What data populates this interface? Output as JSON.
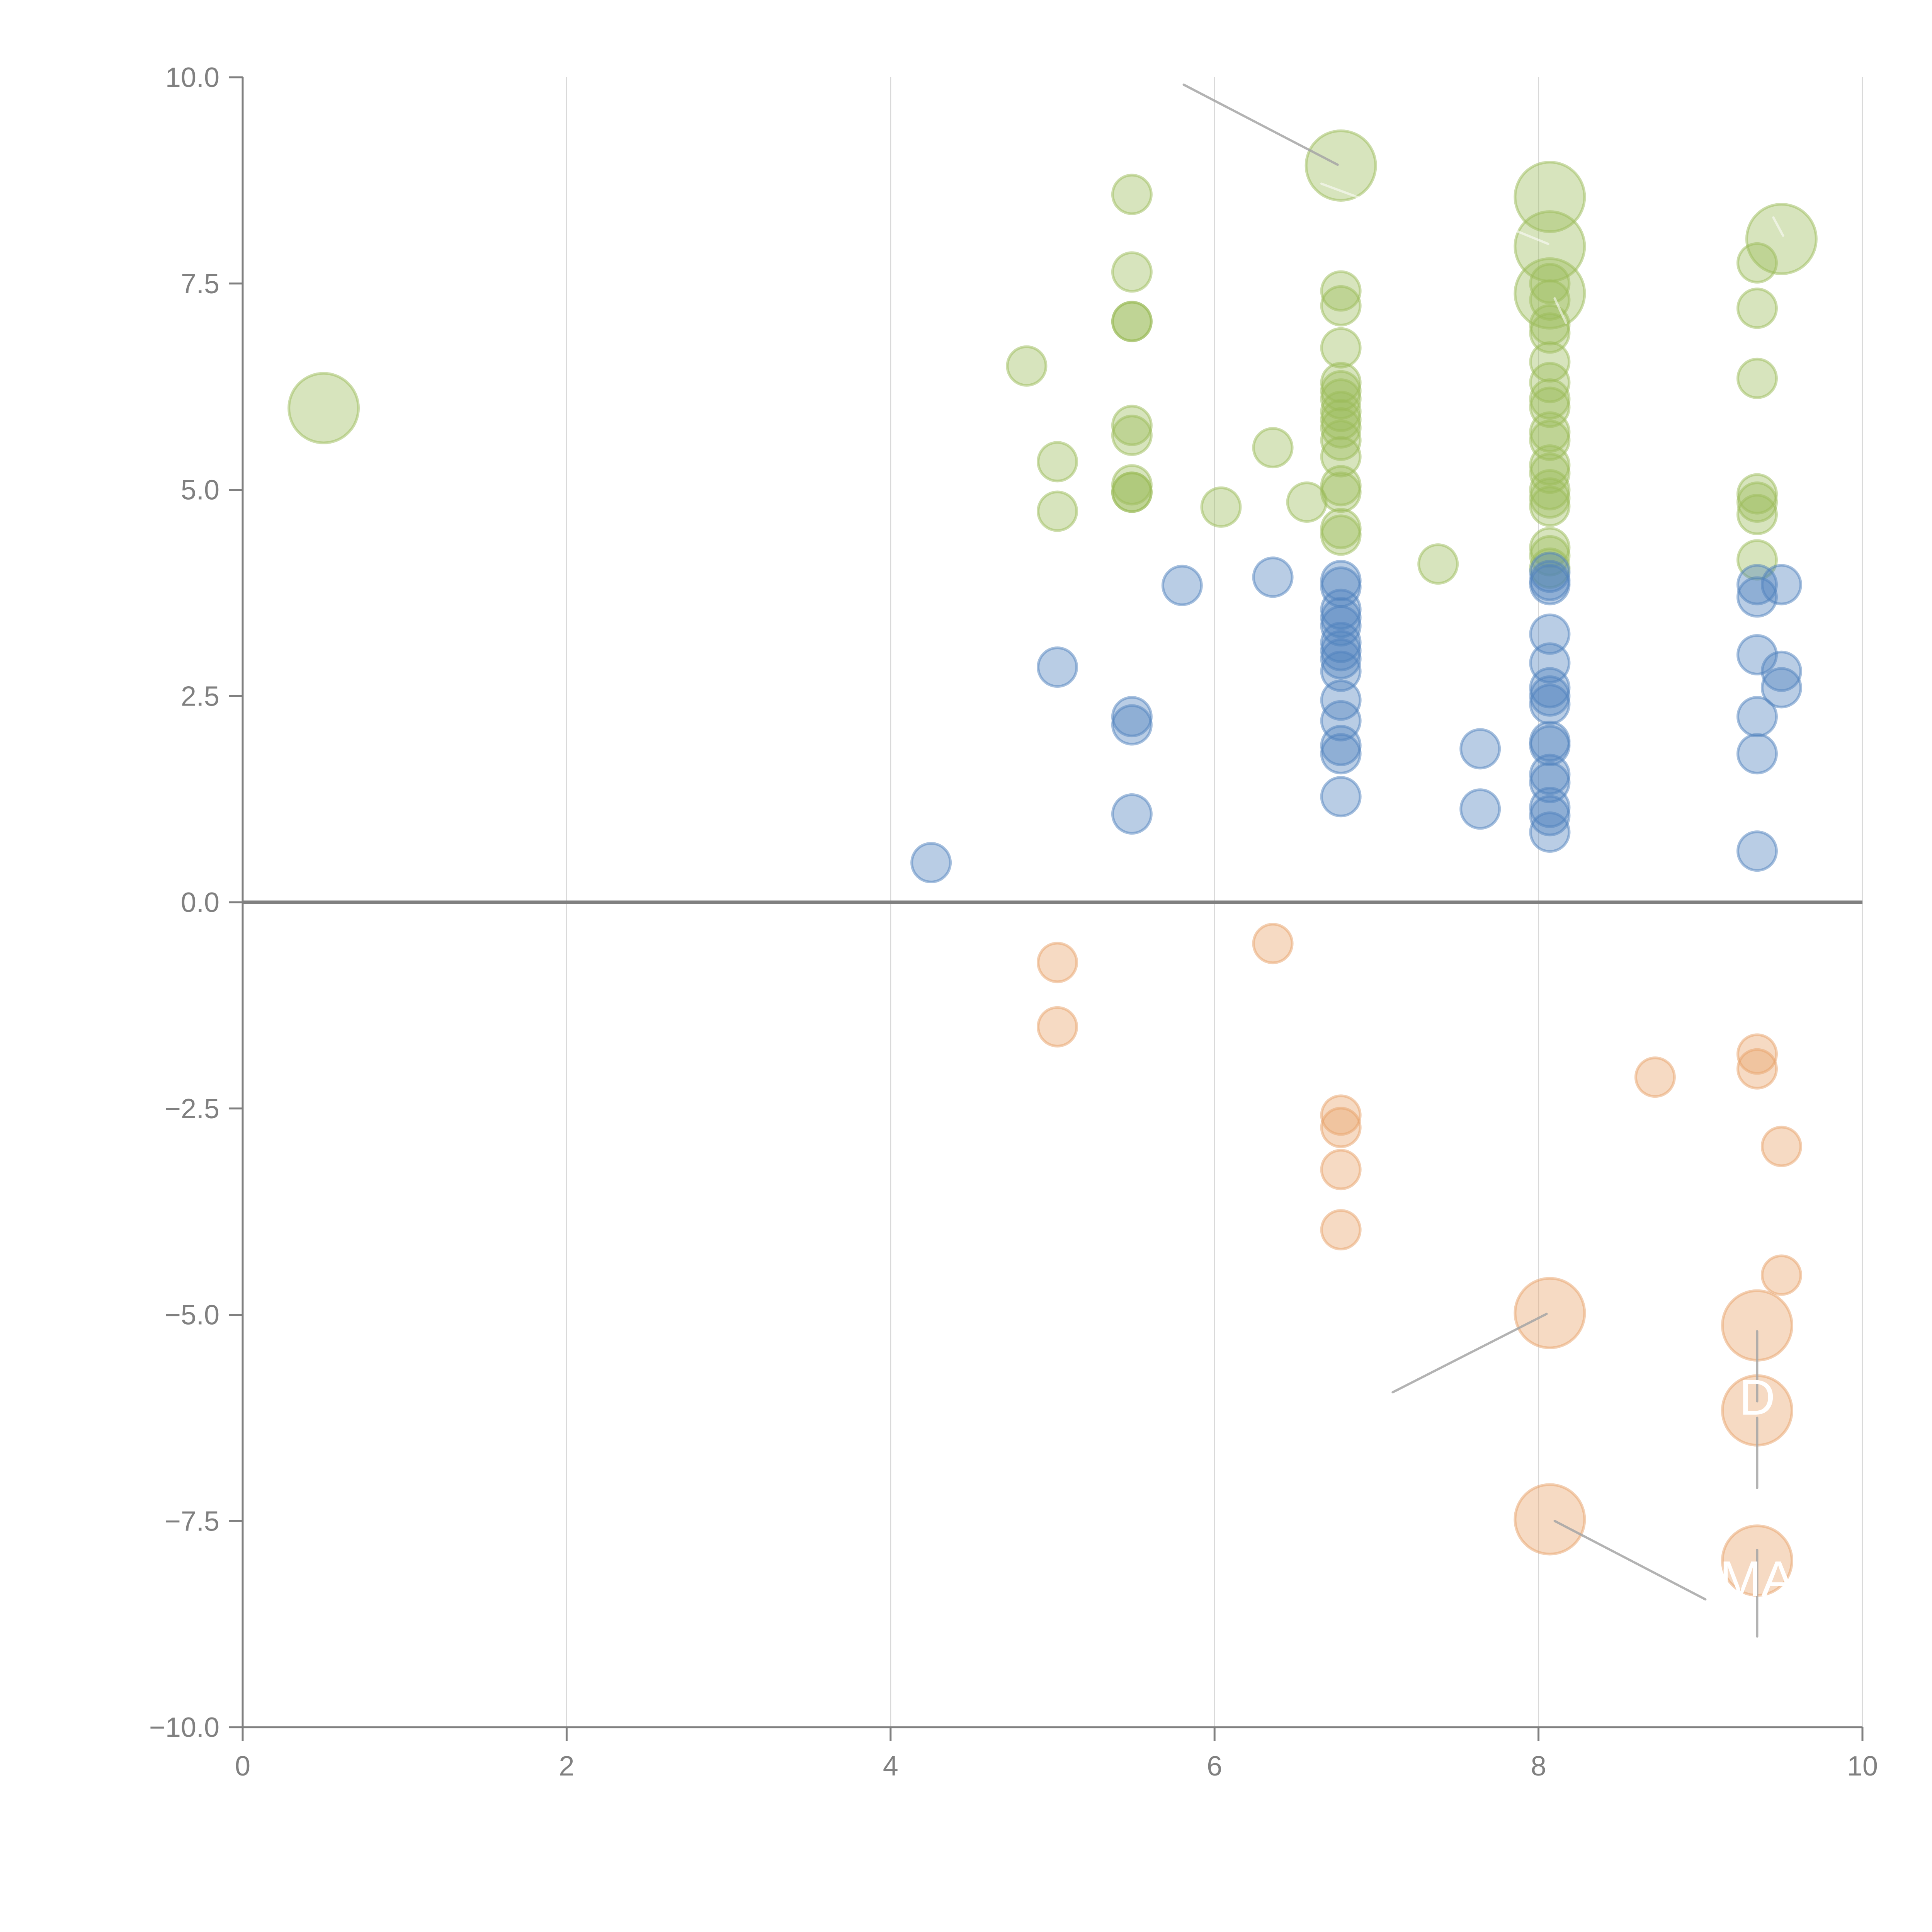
{
  "chart_data": {
    "type": "scatter",
    "title": "",
    "xlabel": "",
    "ylabel": "",
    "xlim": [
      0,
      10
    ],
    "ylim": [
      -10,
      10
    ],
    "x_ticks": [
      0,
      2,
      4,
      6,
      8,
      10
    ],
    "x_tick_labels": [
      "0",
      "2",
      "4",
      "6",
      "8",
      "10"
    ],
    "y_ticks": [
      10,
      7.5,
      5,
      2.5,
      0,
      -2.5,
      -5,
      -7.5,
      -10
    ],
    "y_tick_labels": [
      "10.0",
      "7.5",
      "5.0",
      "2.5",
      "0.0",
      "−2.5",
      "−5.0",
      "−7.5",
      "−10.0"
    ],
    "grid": "vertical",
    "legend": "none",
    "series": [
      {
        "name": "green",
        "color": "#9bbb59",
        "points": [
          {
            "x": 0.5,
            "y": 5.99,
            "size": 2
          },
          {
            "x": 4.84,
            "y": 6.5,
            "size": 1
          },
          {
            "x": 5.03,
            "y": 5.34,
            "size": 1
          },
          {
            "x": 5.03,
            "y": 4.74,
            "size": 1
          },
          {
            "x": 5.49,
            "y": 8.58,
            "size": 1
          },
          {
            "x": 5.49,
            "y": 7.64,
            "size": 1
          },
          {
            "x": 5.49,
            "y": 7.04,
            "size": 1
          },
          {
            "x": 5.49,
            "y": 7.04,
            "size": 1
          },
          {
            "x": 5.49,
            "y": 5.78,
            "size": 1
          },
          {
            "x": 5.49,
            "y": 5.66,
            "size": 1
          },
          {
            "x": 5.49,
            "y": 5.06,
            "size": 1
          },
          {
            "x": 5.49,
            "y": 4.97,
            "size": 1
          },
          {
            "x": 5.49,
            "y": 4.97,
            "size": 1
          },
          {
            "x": 6.04,
            "y": 4.79,
            "size": 1
          },
          {
            "x": 6.36,
            "y": 5.51,
            "size": 1
          },
          {
            "x": 6.57,
            "y": 4.85,
            "size": 1
          },
          {
            "x": 6.78,
            "y": 8.93,
            "size": 2
          },
          {
            "x": 6.78,
            "y": 7.41,
            "size": 1
          },
          {
            "x": 6.78,
            "y": 7.23,
            "size": 1
          },
          {
            "x": 6.78,
            "y": 6.72,
            "size": 1
          },
          {
            "x": 6.78,
            "y": 6.3,
            "size": 1
          },
          {
            "x": 6.78,
            "y": 6.2,
            "size": 1
          },
          {
            "x": 6.78,
            "y": 6.1,
            "size": 1
          },
          {
            "x": 6.78,
            "y": 5.95,
            "size": 1
          },
          {
            "x": 6.78,
            "y": 5.85,
            "size": 1
          },
          {
            "x": 6.78,
            "y": 5.75,
            "size": 1
          },
          {
            "x": 6.78,
            "y": 5.6,
            "size": 1
          },
          {
            "x": 6.78,
            "y": 5.4,
            "size": 1
          },
          {
            "x": 6.78,
            "y": 5.05,
            "size": 1
          },
          {
            "x": 6.78,
            "y": 4.97,
            "size": 1
          },
          {
            "x": 6.78,
            "y": 4.53,
            "size": 1
          },
          {
            "x": 6.78,
            "y": 4.45,
            "size": 1
          },
          {
            "x": 7.38,
            "y": 4.1,
            "size": 1
          },
          {
            "x": 8.07,
            "y": 8.55,
            "size": 2
          },
          {
            "x": 8.07,
            "y": 7.95,
            "size": 2
          },
          {
            "x": 8.07,
            "y": 7.38,
            "size": 2
          },
          {
            "x": 8.07,
            "y": 7.5,
            "size": 1
          },
          {
            "x": 8.07,
            "y": 7.3,
            "size": 1
          },
          {
            "x": 8.07,
            "y": 7.0,
            "size": 1
          },
          {
            "x": 8.07,
            "y": 6.9,
            "size": 1
          },
          {
            "x": 8.07,
            "y": 6.55,
            "size": 1
          },
          {
            "x": 8.07,
            "y": 6.3,
            "size": 1
          },
          {
            "x": 8.07,
            "y": 6.1,
            "size": 1
          },
          {
            "x": 8.07,
            "y": 6.0,
            "size": 1
          },
          {
            "x": 8.07,
            "y": 5.7,
            "size": 1
          },
          {
            "x": 8.07,
            "y": 5.6,
            "size": 1
          },
          {
            "x": 8.07,
            "y": 5.3,
            "size": 1
          },
          {
            "x": 8.07,
            "y": 5.2,
            "size": 1
          },
          {
            "x": 8.07,
            "y": 5.0,
            "size": 1
          },
          {
            "x": 8.07,
            "y": 4.9,
            "size": 1
          },
          {
            "x": 8.07,
            "y": 4.8,
            "size": 1
          },
          {
            "x": 8.07,
            "y": 4.3,
            "size": 1
          },
          {
            "x": 8.07,
            "y": 4.2,
            "size": 1
          },
          {
            "x": 8.07,
            "y": 4.05,
            "size": 1
          },
          {
            "x": 9.35,
            "y": 7.75,
            "size": 1
          },
          {
            "x": 9.35,
            "y": 7.2,
            "size": 1
          },
          {
            "x": 9.35,
            "y": 6.35,
            "size": 1
          },
          {
            "x": 9.35,
            "y": 4.95,
            "size": 1
          },
          {
            "x": 9.35,
            "y": 4.85,
            "size": 1
          },
          {
            "x": 9.35,
            "y": 4.7,
            "size": 1
          },
          {
            "x": 9.35,
            "y": 4.15,
            "size": 1
          },
          {
            "x": 9.5,
            "y": 8.04,
            "size": 2
          }
        ]
      },
      {
        "name": "blue",
        "color": "#4f81bd",
        "points": [
          {
            "x": 4.25,
            "y": 0.48,
            "size": 1
          },
          {
            "x": 5.03,
            "y": 2.85,
            "size": 1
          },
          {
            "x": 5.49,
            "y": 2.25,
            "size": 1
          },
          {
            "x": 5.49,
            "y": 2.15,
            "size": 1
          },
          {
            "x": 5.49,
            "y": 1.07,
            "size": 1
          },
          {
            "x": 5.8,
            "y": 3.84,
            "size": 1
          },
          {
            "x": 6.36,
            "y": 3.94,
            "size": 1
          },
          {
            "x": 6.78,
            "y": 3.9,
            "size": 1
          },
          {
            "x": 6.78,
            "y": 3.82,
            "size": 1
          },
          {
            "x": 6.78,
            "y": 3.55,
            "size": 1
          },
          {
            "x": 6.78,
            "y": 3.45,
            "size": 1
          },
          {
            "x": 6.78,
            "y": 3.35,
            "size": 1
          },
          {
            "x": 6.78,
            "y": 3.15,
            "size": 1
          },
          {
            "x": 6.78,
            "y": 3.05,
            "size": 1
          },
          {
            "x": 6.78,
            "y": 2.95,
            "size": 1
          },
          {
            "x": 6.78,
            "y": 2.8,
            "size": 1
          },
          {
            "x": 6.78,
            "y": 2.45,
            "size": 1
          },
          {
            "x": 6.78,
            "y": 2.2,
            "size": 1
          },
          {
            "x": 6.78,
            "y": 1.9,
            "size": 1
          },
          {
            "x": 6.78,
            "y": 1.8,
            "size": 1
          },
          {
            "x": 6.78,
            "y": 1.28,
            "size": 1
          },
          {
            "x": 7.64,
            "y": 1.86,
            "size": 1
          },
          {
            "x": 7.64,
            "y": 1.13,
            "size": 1
          },
          {
            "x": 8.07,
            "y": 4.0,
            "size": 1
          },
          {
            "x": 8.07,
            "y": 3.9,
            "size": 1
          },
          {
            "x": 8.07,
            "y": 3.85,
            "size": 1
          },
          {
            "x": 8.07,
            "y": 3.25,
            "size": 1
          },
          {
            "x": 8.07,
            "y": 2.9,
            "size": 1
          },
          {
            "x": 8.07,
            "y": 2.6,
            "size": 1
          },
          {
            "x": 8.07,
            "y": 2.5,
            "size": 1
          },
          {
            "x": 8.07,
            "y": 2.4,
            "size": 1
          },
          {
            "x": 8.07,
            "y": 1.95,
            "size": 1
          },
          {
            "x": 8.07,
            "y": 1.9,
            "size": 1
          },
          {
            "x": 8.07,
            "y": 1.55,
            "size": 1
          },
          {
            "x": 8.07,
            "y": 1.45,
            "size": 1
          },
          {
            "x": 8.07,
            "y": 1.15,
            "size": 1
          },
          {
            "x": 8.07,
            "y": 1.05,
            "size": 1
          },
          {
            "x": 8.07,
            "y": 0.85,
            "size": 1
          },
          {
            "x": 9.35,
            "y": 3.85,
            "size": 1
          },
          {
            "x": 9.35,
            "y": 3.7,
            "size": 1
          },
          {
            "x": 9.35,
            "y": 3.0,
            "size": 1
          },
          {
            "x": 9.35,
            "y": 2.25,
            "size": 1
          },
          {
            "x": 9.35,
            "y": 1.8,
            "size": 1
          },
          {
            "x": 9.35,
            "y": 0.62,
            "size": 1
          },
          {
            "x": 9.5,
            "y": 3.85,
            "size": 1
          },
          {
            "x": 9.5,
            "y": 2.8,
            "size": 1
          },
          {
            "x": 9.5,
            "y": 2.6,
            "size": 1
          }
        ]
      },
      {
        "name": "orange",
        "color": "#e8a26a",
        "points": [
          {
            "x": 5.03,
            "y": -0.73,
            "size": 1
          },
          {
            "x": 5.03,
            "y": -1.51,
            "size": 1
          },
          {
            "x": 6.36,
            "y": -0.5,
            "size": 1
          },
          {
            "x": 6.78,
            "y": -2.58,
            "size": 1
          },
          {
            "x": 6.78,
            "y": -2.73,
            "size": 1
          },
          {
            "x": 6.78,
            "y": -3.24,
            "size": 1
          },
          {
            "x": 6.78,
            "y": -3.97,
            "size": 1
          },
          {
            "x": 8.72,
            "y": -2.12,
            "size": 1
          },
          {
            "x": 9.35,
            "y": -1.84,
            "size": 1
          },
          {
            "x": 9.35,
            "y": -2.02,
            "size": 1
          },
          {
            "x": 9.5,
            "y": -2.96,
            "size": 1
          },
          {
            "x": 9.5,
            "y": -4.52,
            "size": 1
          },
          {
            "x": 8.07,
            "y": -4.98,
            "size": 2
          },
          {
            "x": 8.07,
            "y": -7.48,
            "size": 2
          },
          {
            "x": 9.35,
            "y": -5.13,
            "size": 2
          },
          {
            "x": 9.35,
            "y": -6.16,
            "size": 2,
            "label": "D"
          },
          {
            "x": 9.35,
            "y": -7.98,
            "size": 2,
            "label": "MA"
          }
        ]
      }
    ],
    "annotations": [
      {
        "text": "D",
        "x": 9.35,
        "y": -6.0,
        "color": "#ffffff"
      },
      {
        "text": "MA",
        "x": 9.35,
        "y": -8.2,
        "color": "#ffffff"
      }
    ],
    "leader_lines": [
      {
        "from": [
          5.81,
          9.91
        ],
        "to": [
          6.76,
          8.94
        ],
        "color": "grey"
      },
      {
        "from": [
          6.66,
          8.71
        ],
        "to": [
          6.99,
          8.47
        ],
        "color": "white"
      },
      {
        "from": [
          8.06,
          7.98
        ],
        "to": [
          7.86,
          8.14
        ],
        "color": "white"
      },
      {
        "from": [
          8.1,
          7.32
        ],
        "to": [
          8.17,
          7.02
        ],
        "color": "white"
      },
      {
        "from": [
          9.45,
          8.3
        ],
        "to": [
          9.51,
          8.08
        ],
        "color": "white"
      },
      {
        "from": [
          8.05,
          -4.99
        ],
        "to": [
          7.1,
          -5.94
        ],
        "color": "grey"
      },
      {
        "from": [
          8.1,
          -7.5
        ],
        "to": [
          9.03,
          -8.45
        ],
        "color": "grey"
      },
      {
        "from": [
          9.35,
          -5.2
        ],
        "to": [
          9.35,
          -6.05
        ],
        "color": "grey"
      },
      {
        "from": [
          9.35,
          -6.25
        ],
        "to": [
          9.35,
          -7.1
        ],
        "color": "grey"
      },
      {
        "from": [
          9.35,
          -7.85
        ],
        "to": [
          9.35,
          -8.9
        ],
        "color": "grey"
      }
    ]
  }
}
